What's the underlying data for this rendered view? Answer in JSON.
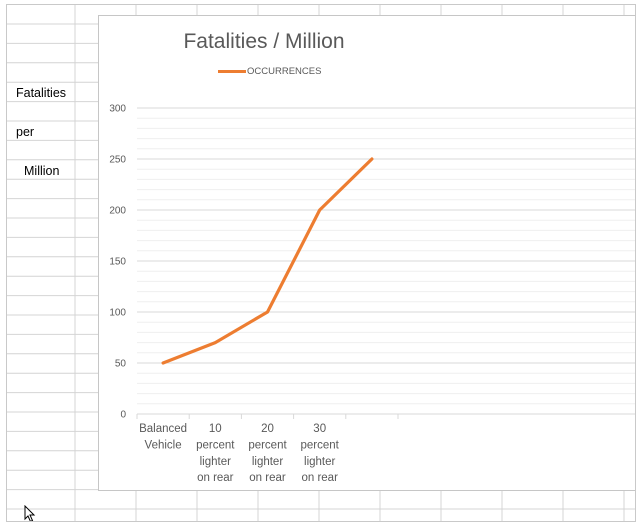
{
  "sheet": {
    "cells": [
      "Fatalities",
      "per",
      "Million"
    ]
  },
  "icons": {
    "cursor": "mouse-pointer-icon"
  },
  "colors": {
    "series": "#ED7D31",
    "gridline": "#d9d9d9",
    "axis_text": "#595959",
    "cell_border": "#d4d4d4"
  },
  "chart_data": {
    "type": "line",
    "title": "Fatalities / Million",
    "categories": [
      [
        "Balanced",
        "Vehicle"
      ],
      [
        "10",
        "percent",
        "lighter",
        "on rear"
      ],
      [
        "20",
        "percent",
        "lighter",
        "on rear"
      ],
      [
        "30",
        "percent",
        "lighter",
        "on rear"
      ],
      [
        ""
      ]
    ],
    "series": [
      {
        "name": "OCCURRENCES",
        "values": [
          50,
          70,
          100,
          200,
          250
        ]
      }
    ],
    "ylim": [
      0,
      300
    ],
    "yticks": [
      "0",
      "50",
      "100",
      "150",
      "200",
      "250",
      "300"
    ],
    "grid": true,
    "legend": "top-left"
  }
}
